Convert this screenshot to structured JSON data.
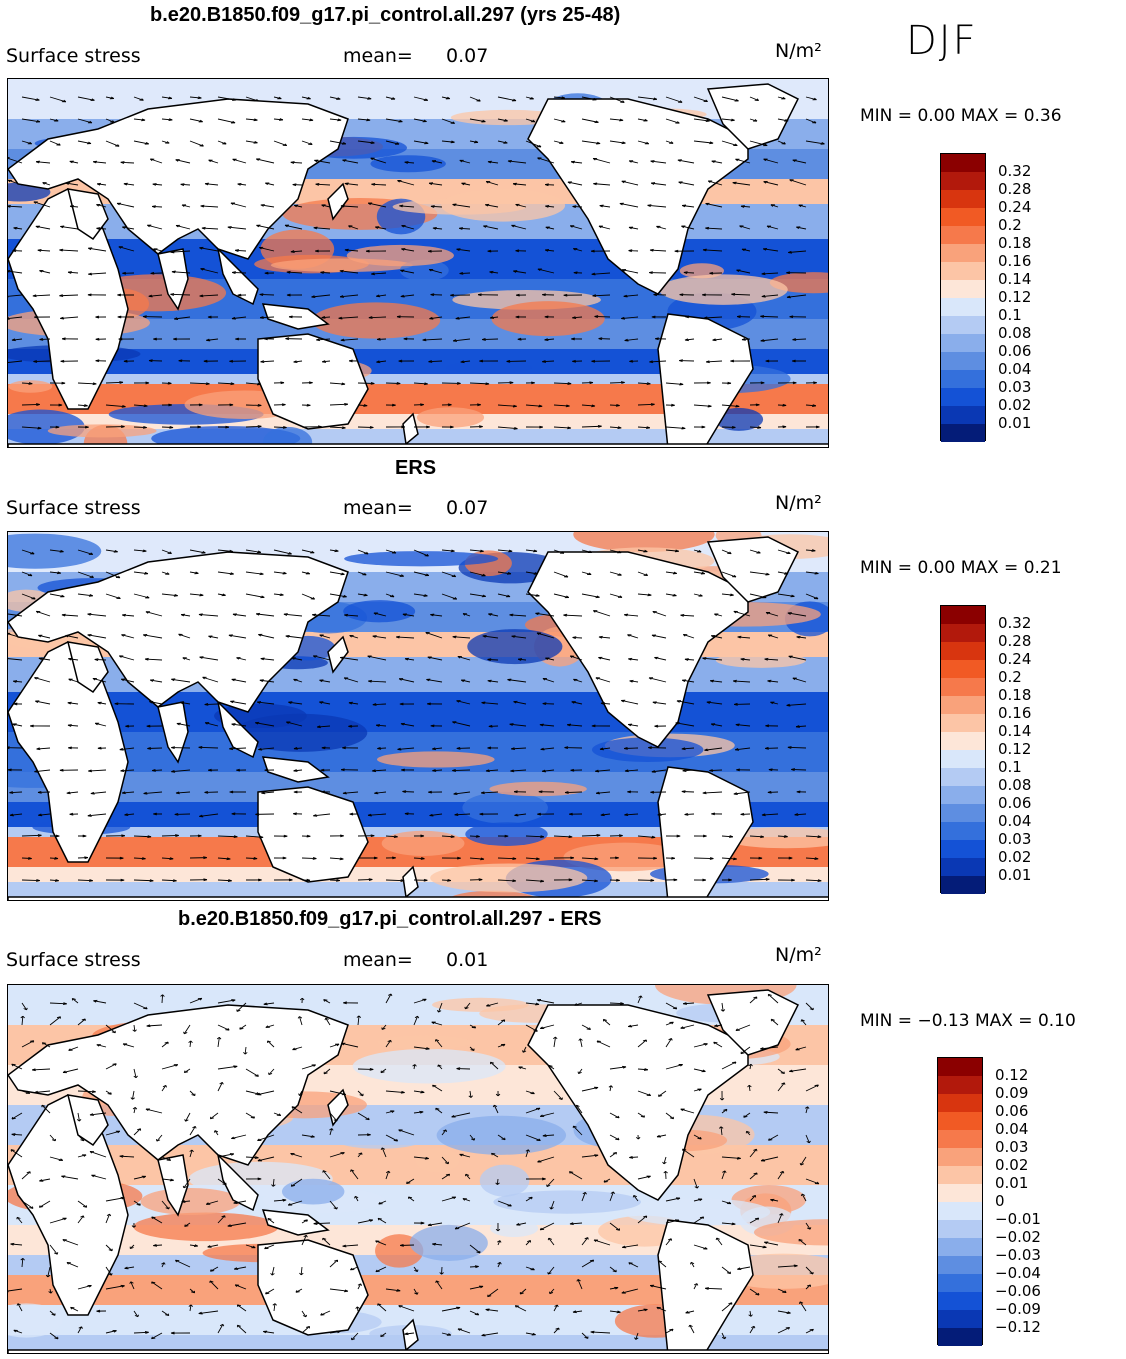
{
  "season": "DJF",
  "panels": [
    {
      "title": "b.e20.B1850.f09_g17.pi_control.all.297 (yrs 25-48)",
      "variable": "Surface stress",
      "mean_label": "mean=",
      "mean_value": "0.07",
      "units": "N/m²",
      "minmax": "MIN =     0.00  MAX =     0.36",
      "colorbar_ticks": [
        "0.32",
        "0.28",
        "0.24",
        "0.2",
        "0.18",
        "0.16",
        "0.14",
        "0.12",
        "0.1",
        "0.08",
        "0.06",
        "0.04",
        "0.03",
        "0.02",
        "0.01"
      ],
      "palette": "abs"
    },
    {
      "title": "ERS",
      "variable": "Surface stress",
      "mean_label": "mean=",
      "mean_value": "0.07",
      "units": "N/m²",
      "minmax": "MIN =     0.00  MAX =     0.21",
      "colorbar_ticks": [
        "0.32",
        "0.28",
        "0.24",
        "0.2",
        "0.18",
        "0.16",
        "0.14",
        "0.12",
        "0.1",
        "0.08",
        "0.06",
        "0.04",
        "0.03",
        "0.02",
        "0.01"
      ],
      "palette": "abs"
    },
    {
      "title": "b.e20.B1850.f09_g17.pi_control.all.297 - ERS",
      "variable": "Surface stress",
      "mean_label": "mean=",
      "mean_value": "0.01",
      "units": "N/m²",
      "minmax": "MIN =   −0.13  MAX =     0.10",
      "colorbar_ticks": [
        "0.12",
        "0.09",
        "0.06",
        "0.04",
        "0.03",
        "0.02",
        "0.01",
        "0",
        "−0.01",
        "−0.02",
        "−0.03",
        "−0.04",
        "−0.06",
        "−0.09",
        "−0.12"
      ],
      "palette": "diff"
    }
  ],
  "colors": {
    "abs": [
      "#8b0000",
      "#b2190c",
      "#d8350f",
      "#f15a24",
      "#f6794b",
      "#f9a27b",
      "#fcc5a6",
      "#fde6d8",
      "#d9e7fa",
      "#b4cbf3",
      "#8aaeeb",
      "#5e8ee1",
      "#3470dc",
      "#1452d6",
      "#0a38b4",
      "#041c78"
    ],
    "diff": [
      "#8b0000",
      "#b2190c",
      "#d8350f",
      "#f15a24",
      "#f6794b",
      "#f9a27b",
      "#fcc5a6",
      "#fde6d8",
      "#d9e7fa",
      "#b4cbf3",
      "#8aaeeb",
      "#5e8ee1",
      "#3470dc",
      "#1452d6",
      "#0a38b4",
      "#041c78"
    ],
    "land": "#ffffff",
    "coast": "#000000"
  }
}
